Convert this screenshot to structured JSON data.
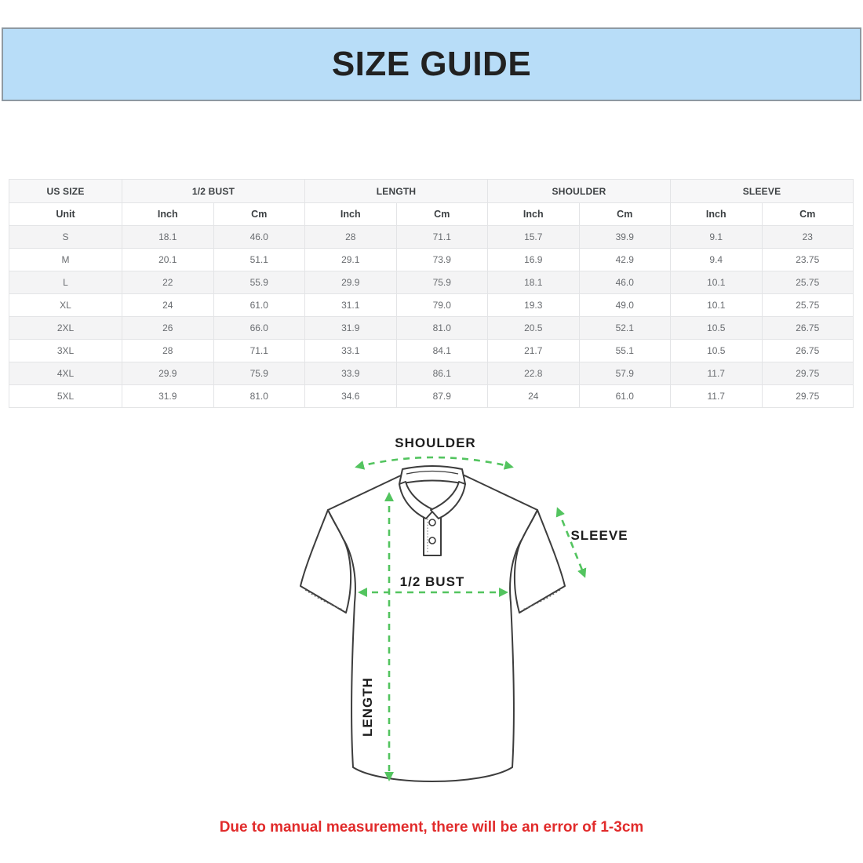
{
  "banner": {
    "title": "SIZE GUIDE",
    "background": "#b8ddf8",
    "border_color": "#8e99a2"
  },
  "table": {
    "group_headers": [
      "US SIZE",
      "1/2 BUST",
      "LENGTH",
      "SHOULDER",
      "SLEEVE"
    ],
    "unit_row": [
      "Unit",
      "Inch",
      "Cm",
      "Inch",
      "Cm",
      "Inch",
      "Cm",
      "Inch",
      "Cm"
    ],
    "rows": [
      [
        "S",
        "18.1",
        "46.0",
        "28",
        "71.1",
        "15.7",
        "39.9",
        "9.1",
        "23"
      ],
      [
        "M",
        "20.1",
        "51.1",
        "29.1",
        "73.9",
        "16.9",
        "42.9",
        "9.4",
        "23.75"
      ],
      [
        "L",
        "22",
        "55.9",
        "29.9",
        "75.9",
        "18.1",
        "46.0",
        "10.1",
        "25.75"
      ],
      [
        "XL",
        "24",
        "61.0",
        "31.1",
        "79.0",
        "19.3",
        "49.0",
        "10.1",
        "25.75"
      ],
      [
        "2XL",
        "26",
        "66.0",
        "31.9",
        "81.0",
        "20.5",
        "52.1",
        "10.5",
        "26.75"
      ],
      [
        "3XL",
        "28",
        "71.1",
        "33.1",
        "84.1",
        "21.7",
        "55.1",
        "10.5",
        "26.75"
      ],
      [
        "4XL",
        "29.9",
        "75.9",
        "33.9",
        "86.1",
        "22.8",
        "57.9",
        "11.7",
        "29.75"
      ],
      [
        "5XL",
        "31.9",
        "81.0",
        "34.6",
        "87.9",
        "24",
        "61.0",
        "11.7",
        "29.75"
      ]
    ]
  },
  "diagram": {
    "labels": {
      "shoulder": "SHOULDER",
      "sleeve": "SLEEVE",
      "bust": "1/2 BUST",
      "length": "LENGTH"
    },
    "arrow_color": "#53c45f",
    "outline_color": "#3d3d3d"
  },
  "disclaimer": {
    "text": "Due to manual measurement, there will be an error of 1-3cm",
    "color": "#e12b2b"
  }
}
